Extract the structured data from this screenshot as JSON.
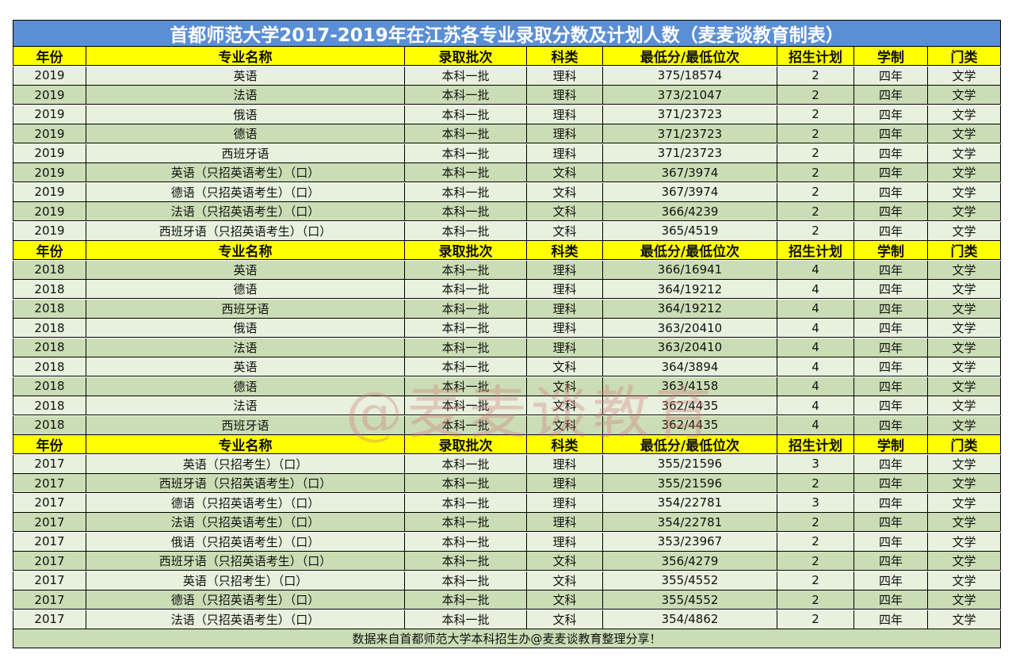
{
  "title": "首都师范大学2017-2019年在江苏各专业录取分数及计划人数（麦麦谈教育制表）",
  "headers": [
    "年份",
    "专业名称",
    "录取批次",
    "科类",
    "最低分/最低位次",
    "招生计划",
    "学制",
    "门类"
  ],
  "sections": [
    {
      "rows": [
        [
          "2019",
          "英语",
          "本科一批",
          "理科",
          "375/18574",
          "2",
          "四年",
          "文学"
        ],
        [
          "2019",
          "法语",
          "本科一批",
          "理科",
          "373/21047",
          "2",
          "四年",
          "文学"
        ],
        [
          "2019",
          "俄语",
          "本科一批",
          "理科",
          "371/23723",
          "2",
          "四年",
          "文学"
        ],
        [
          "2019",
          "德语",
          "本科一批",
          "理科",
          "371/23723",
          "2",
          "四年",
          "文学"
        ],
        [
          "2019",
          "西班牙语",
          "本科一批",
          "理科",
          "371/23723",
          "2",
          "四年",
          "文学"
        ],
        [
          "2019",
          "英语（只招英语考生）（口）",
          "本科一批",
          "文科",
          "367/3974",
          "2",
          "四年",
          "文学"
        ],
        [
          "2019",
          "德语（只招英语考生）（口）",
          "本科一批",
          "文科",
          "367/3974",
          "2",
          "四年",
          "文学"
        ],
        [
          "2019",
          "法语（只招英语考生）（口）",
          "本科一批",
          "文科",
          "366/4239",
          "2",
          "四年",
          "文学"
        ],
        [
          "2019",
          "西班牙语（只招英语考生）（口）",
          "本科一批",
          "文科",
          "365/4519",
          "2",
          "四年",
          "文学"
        ]
      ]
    },
    {
      "rows": [
        [
          "2018",
          "英语",
          "本科一批",
          "理科",
          "366/16941",
          "4",
          "四年",
          "文学"
        ],
        [
          "2018",
          "德语",
          "本科一批",
          "理科",
          "364/19212",
          "4",
          "四年",
          "文学"
        ],
        [
          "2018",
          "西班牙语",
          "本科一批",
          "理科",
          "364/19212",
          "4",
          "四年",
          "文学"
        ],
        [
          "2018",
          "俄语",
          "本科一批",
          "理科",
          "363/20410",
          "4",
          "四年",
          "文学"
        ],
        [
          "2018",
          "法语",
          "本科一批",
          "理科",
          "363/20410",
          "4",
          "四年",
          "文学"
        ],
        [
          "2018",
          "英语",
          "本科一批",
          "文科",
          "364/3894",
          "4",
          "四年",
          "文学"
        ],
        [
          "2018",
          "德语",
          "本科一批",
          "文科",
          "363/4158",
          "4",
          "四年",
          "文学"
        ],
        [
          "2018",
          "法语",
          "本科一批",
          "文科",
          "362/4435",
          "4",
          "四年",
          "文学"
        ],
        [
          "2018",
          "西班牙语",
          "本科一批",
          "文科",
          "362/4435",
          "4",
          "四年",
          "文学"
        ]
      ]
    },
    {
      "rows": [
        [
          "2017",
          "英语（只招考生）（口）",
          "本科一批",
          "理科",
          "355/21596",
          "3",
          "四年",
          "文学"
        ],
        [
          "2017",
          "西班牙语（只招英语考生）（口）",
          "本科一批",
          "理科",
          "355/21596",
          "2",
          "四年",
          "文学"
        ],
        [
          "2017",
          "德语（只招英语考生）（口）",
          "本科一批",
          "理科",
          "354/22781",
          "3",
          "四年",
          "文学"
        ],
        [
          "2017",
          "法语（只招英语考生）（口）",
          "本科一批",
          "理科",
          "354/22781",
          "2",
          "四年",
          "文学"
        ],
        [
          "2017",
          "俄语（只招英语考生）（口）",
          "本科一批",
          "理科",
          "353/23967",
          "2",
          "四年",
          "文学"
        ],
        [
          "2017",
          "西班牙语（只招英语考生）（口）",
          "本科一批",
          "文科",
          "356/4279",
          "2",
          "四年",
          "文学"
        ],
        [
          "2017",
          "英语（只招考生）（口）",
          "本科一批",
          "文科",
          "355/4552",
          "2",
          "四年",
          "文学"
        ],
        [
          "2017",
          "德语（只招英语考生）（口）",
          "本科一批",
          "文科",
          "355/4552",
          "2",
          "四年",
          "文学"
        ],
        [
          "2017",
          "法语（只招英语考生）（口）",
          "本科一批",
          "文科",
          "354/4862",
          "2",
          "四年",
          "文学"
        ]
      ]
    }
  ],
  "footer": "数据来自首都师范大学本科招生办@麦麦谈教育整理分享！",
  "watermark": "@麦麦谈教育",
  "colors": {
    "title_bg": "#5b8fd5",
    "header_bg": "#ffff00",
    "row_light": "#e7f1dd",
    "row_dark": "#cbddb5"
  }
}
